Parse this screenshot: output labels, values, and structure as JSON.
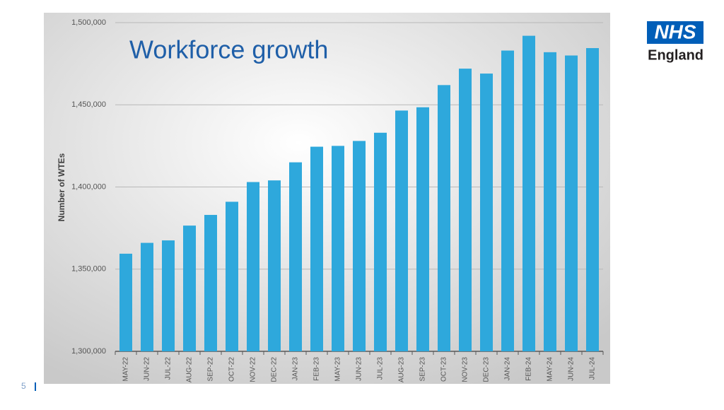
{
  "chart_data": {
    "type": "bar",
    "title": "Workforce growth",
    "y_label": "Number of WTEs",
    "categories": [
      "MAY-22",
      "JUN-22",
      "JUL-22",
      "AUG-22",
      "SEP-22",
      "OCT-22",
      "NOV-22",
      "DEC-22",
      "JAN-23",
      "FEB-23",
      "MAY-23",
      "JUN-23",
      "JUL-23",
      "AUG-23",
      "SEP-23",
      "OCT-23",
      "NOV-23",
      "DEC-23",
      "JAN-24",
      "FEB-24",
      "MAY-24",
      "JUN-24",
      "JUL-24"
    ],
    "values": [
      1359400,
      1366000,
      1367500,
      1376500,
      1383000,
      1391000,
      1403000,
      1404000,
      1415000,
      1424500,
      1425000,
      1428000,
      1433000,
      1446500,
      1448500,
      1462000,
      1472000,
      1469000,
      1483000,
      1492000,
      1482000,
      1480000,
      1484500
    ],
    "color": "#2ea8dc",
    "ylim": [
      1300000,
      1500000
    ],
    "yticks": [
      {
        "value": 1300000,
        "label": "1,300,000"
      },
      {
        "value": 1350000,
        "label": "1,350,000"
      },
      {
        "value": 1400000,
        "label": "1,400,000"
      },
      {
        "value": 1450000,
        "label": "1,450,000"
      },
      {
        "value": 1500000,
        "label": "1,500,000"
      }
    ],
    "grid": true
  },
  "logo": {
    "mark": "NHS",
    "text": "England"
  },
  "page_number": "5"
}
